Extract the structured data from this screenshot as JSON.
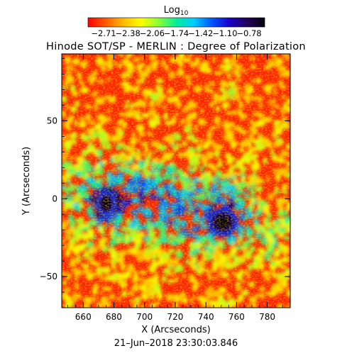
{
  "chart_data": {
    "type": "heatmap",
    "title": "Hinode SOT/SP - MERLIN : Degree of Polarization",
    "colorbar": {
      "label_base": "Log",
      "label_sub": "10",
      "tick_labels": [
        "−2.71",
        "−2.38",
        "−2.06",
        "−1.74",
        "−1.42",
        "−1.10",
        "−0.78"
      ],
      "min": -2.71,
      "max": -0.78,
      "colors": [
        "#ff0000",
        "#ff5a00",
        "#ffbb00",
        "#ffff00",
        "#88ff33",
        "#00ee99",
        "#00ccff",
        "#0055ff",
        "#1a00cc",
        "#22005a",
        "#050008"
      ]
    },
    "xlabel": "X (Arcseconds)",
    "ylabel": "Y (Arcseconds)",
    "xlim": [
      646,
      795
    ],
    "ylim": [
      -70,
      93
    ],
    "xticks": [
      660,
      680,
      700,
      720,
      740,
      760,
      780
    ],
    "yticks": [
      -50,
      0,
      50
    ],
    "xtick_labels": [
      "660",
      "680",
      "700",
      "720",
      "740",
      "760",
      "780"
    ],
    "ytick_labels": [
      "−50",
      "0",
      "50"
    ],
    "features": [
      {
        "name": "sunspot-left",
        "x": 675,
        "y": -3,
        "value": -0.82
      },
      {
        "name": "sunspot-right",
        "x": 751,
        "y": -15,
        "value": -0.8
      }
    ],
    "timestamp": "21–Jun–2018 23:30:03.846"
  }
}
